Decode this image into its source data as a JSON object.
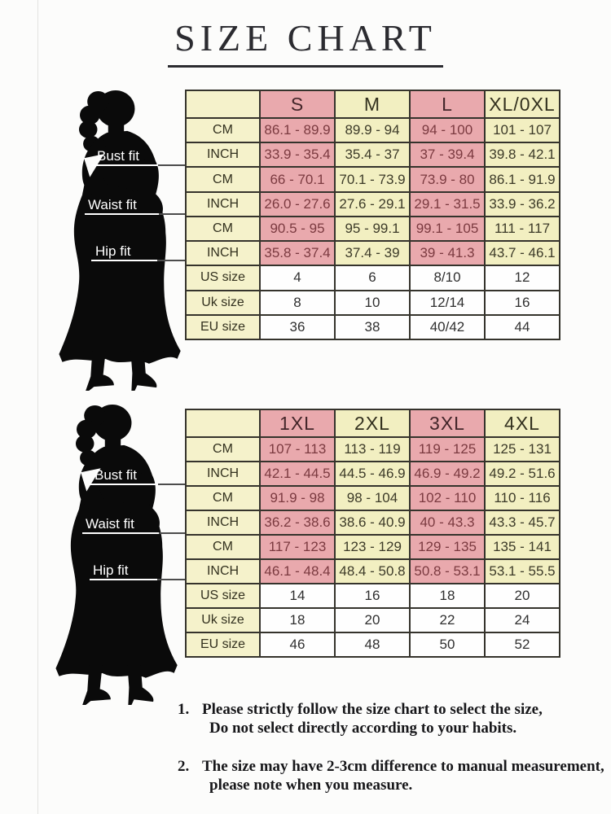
{
  "title": "SIZE CHART",
  "figure_labels": {
    "bust": "Bust fit",
    "waist": "Waist fit",
    "hip": "Hip fit"
  },
  "tables": [
    {
      "sizes": [
        "S",
        "M",
        "L",
        "XL/0XL"
      ],
      "rows": [
        {
          "label": "CM",
          "type": "measure",
          "values": [
            "86.1 - 89.9",
            "89.9 - 94",
            "94 - 100",
            "101 - 107"
          ]
        },
        {
          "label": "INCH",
          "type": "measure",
          "values": [
            "33.9 - 35.4",
            "35.4 - 37",
            "37 - 39.4",
            "39.8 - 42.1"
          ]
        },
        {
          "label": "CM",
          "type": "measure",
          "values": [
            "66 - 70.1",
            "70.1 - 73.9",
            "73.9 - 80",
            "86.1 - 91.9"
          ]
        },
        {
          "label": "INCH",
          "type": "measure",
          "values": [
            "26.0 - 27.6",
            "27.6 - 29.1",
            "29.1 - 31.5",
            "33.9 - 36.2"
          ]
        },
        {
          "label": "CM",
          "type": "measure",
          "values": [
            "90.5 - 95",
            "95 - 99.1",
            "99.1 - 105",
            "111 - 117"
          ]
        },
        {
          "label": "INCH",
          "type": "measure",
          "values": [
            "35.8 - 37.4",
            "37.4 - 39",
            "39 - 41.3",
            "43.7 - 46.1"
          ]
        },
        {
          "label": "US size",
          "type": "size",
          "values": [
            "4",
            "6",
            "8/10",
            "12"
          ]
        },
        {
          "label": "Uk size",
          "type": "size",
          "values": [
            "8",
            "10",
            "12/14",
            "16"
          ]
        },
        {
          "label": "EU size",
          "type": "size",
          "values": [
            "36",
            "38",
            "40/42",
            "44"
          ]
        }
      ]
    },
    {
      "sizes": [
        "1XL",
        "2XL",
        "3XL",
        "4XL"
      ],
      "rows": [
        {
          "label": "CM",
          "type": "measure",
          "values": [
            "107 - 113",
            "113 - 119",
            "119 - 125",
            "125 - 131"
          ]
        },
        {
          "label": "INCH",
          "type": "measure",
          "values": [
            "42.1 - 44.5",
            "44.5 - 46.9",
            "46.9 - 49.2",
            "49.2 - 51.6"
          ]
        },
        {
          "label": "CM",
          "type": "measure",
          "values": [
            "91.9 - 98",
            "98 - 104",
            "102 - 110",
            "110 - 116"
          ]
        },
        {
          "label": "INCH",
          "type": "measure",
          "values": [
            "36.2 - 38.6",
            "38.6 - 40.9",
            "40 - 43.3",
            "43.3 - 45.7"
          ]
        },
        {
          "label": "CM",
          "type": "measure",
          "values": [
            "117 - 123",
            "123 - 129",
            "129 - 135",
            "135 - 141"
          ]
        },
        {
          "label": "INCH",
          "type": "measure",
          "values": [
            "46.1 - 48.4",
            "48.4 - 50.8",
            "50.8 - 53.1",
            "53.1 - 55.5"
          ]
        },
        {
          "label": "US size",
          "type": "size",
          "values": [
            "14",
            "16",
            "18",
            "20"
          ]
        },
        {
          "label": "Uk size",
          "type": "size",
          "values": [
            "18",
            "20",
            "22",
            "24"
          ]
        },
        {
          "label": "EU size",
          "type": "size",
          "values": [
            "46",
            "48",
            "50",
            "52"
          ]
        }
      ]
    }
  ],
  "notes": [
    {
      "num": "1.",
      "line1": "Please strictly follow the size chart to select the size,",
      "line2": "Do not select directly according to your habits."
    },
    {
      "num": "2.",
      "line1": "The size may have 2-3cm difference  to manual measurement,",
      "line2": "please note when you measure."
    }
  ],
  "colors": {
    "pink": "#e9a9ad",
    "yellow": "#f2efc1",
    "label_yellow": "#f5f2cb",
    "border": "#35332c",
    "pink_text": "#7b3a40",
    "dark_text": "#3c3a28"
  }
}
